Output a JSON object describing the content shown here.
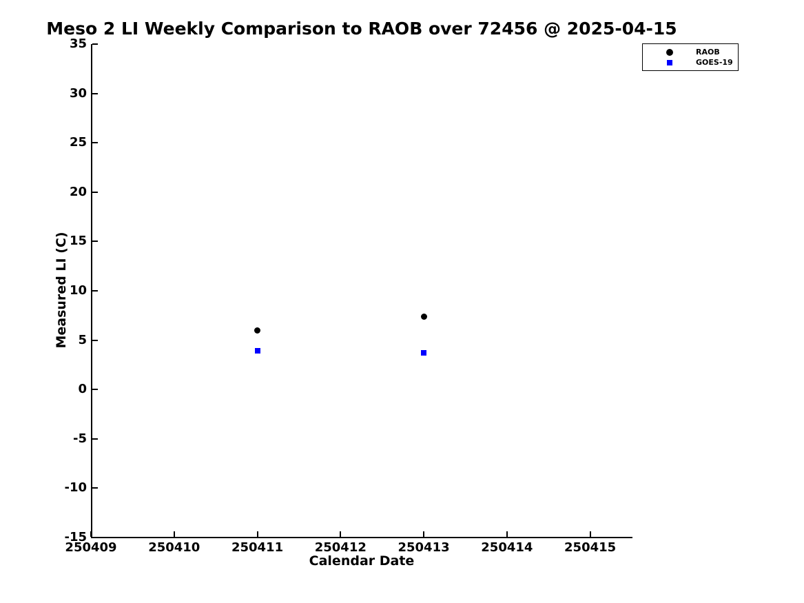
{
  "chart_data": {
    "type": "scatter",
    "title": "Meso 2 LI Weekly Comparison to RAOB over 72456 @ 2025-04-15",
    "xlabel": "Calendar Date",
    "ylabel": "Measured LI (C)",
    "x_ticks": [
      250409,
      250410,
      250411,
      250412,
      250413,
      250414,
      250415
    ],
    "y_ticks": [
      35,
      30,
      25,
      20,
      15,
      10,
      5,
      0,
      -5,
      -10,
      -15
    ],
    "xlim": [
      250409,
      250415.5
    ],
    "ylim": [
      -15,
      35
    ],
    "grid": false,
    "background": "#ffffff",
    "legend": {
      "position": "top-right-outside",
      "entries": [
        {
          "label": "RAOB",
          "marker": "circle",
          "color": "#000000"
        },
        {
          "label": "GOES-19",
          "marker": "square",
          "color": "#0000ff"
        }
      ]
    },
    "series": [
      {
        "name": "RAOB",
        "marker": "circle",
        "color": "#000000",
        "points": [
          {
            "x": 250411,
            "y": 6.0
          },
          {
            "x": 250413,
            "y": 7.4
          }
        ]
      },
      {
        "name": "GOES-19",
        "marker": "square",
        "color": "#0000ff",
        "points": [
          {
            "x": 250411,
            "y": 3.9
          },
          {
            "x": 250413,
            "y": 3.7
          }
        ]
      }
    ]
  }
}
